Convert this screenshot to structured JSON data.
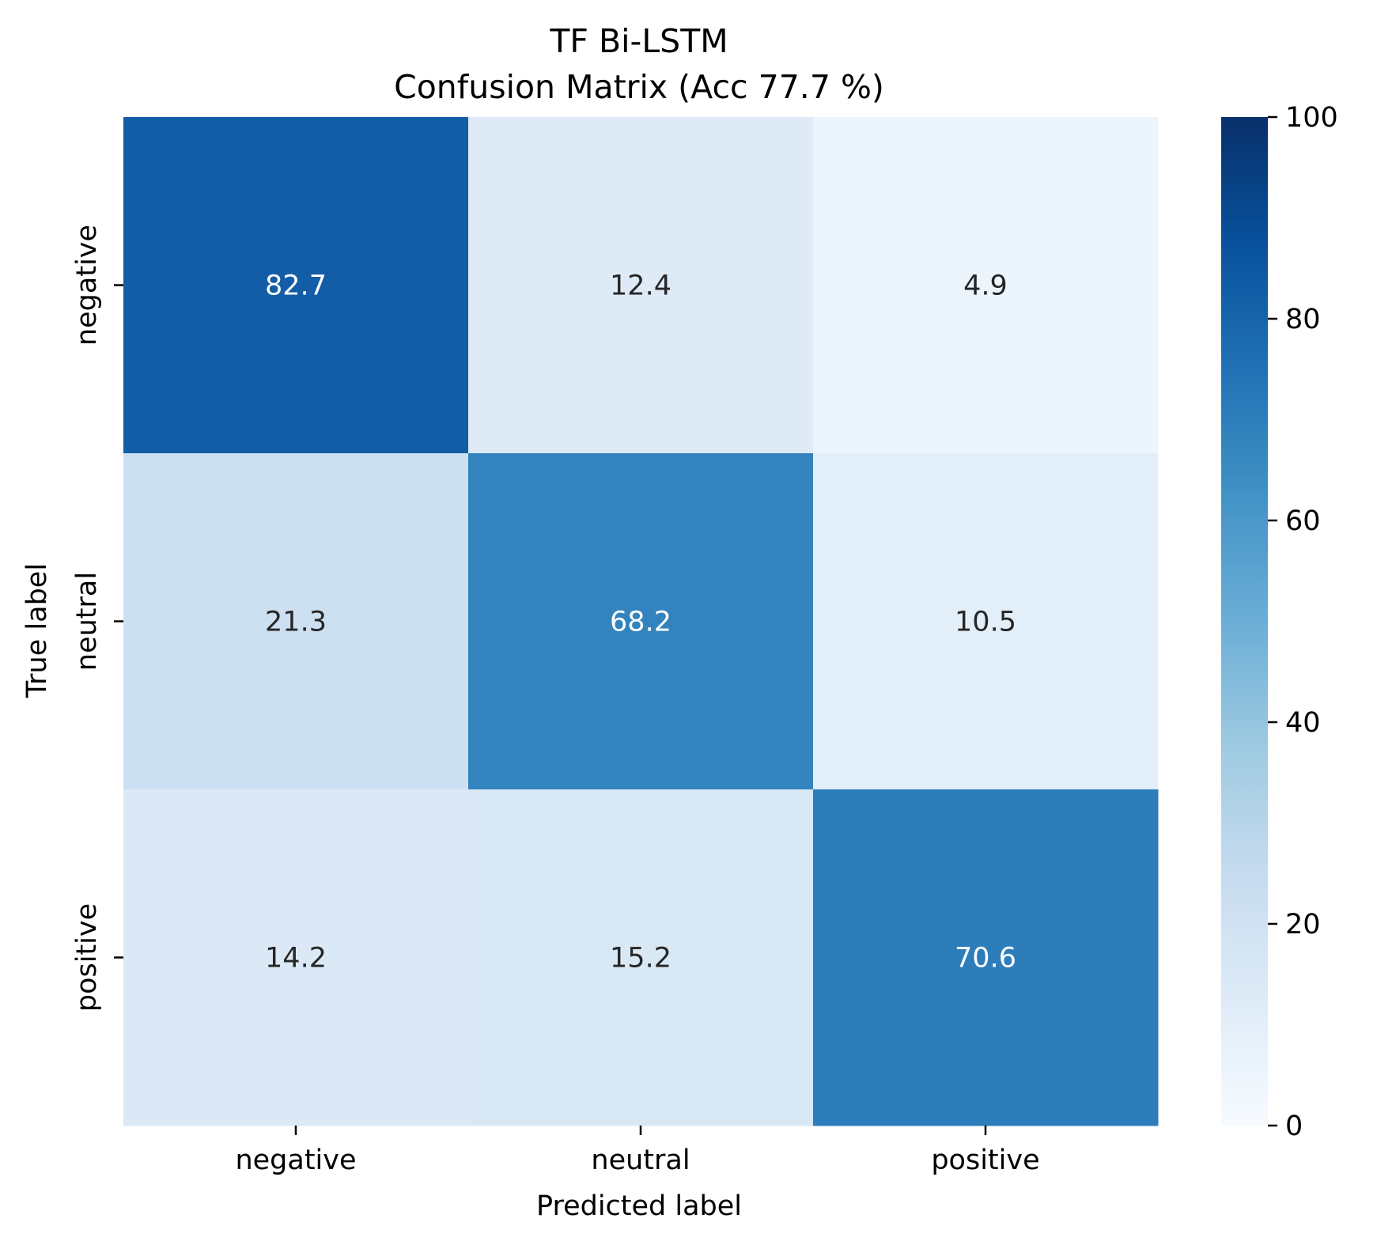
{
  "chart_data": {
    "type": "heatmap",
    "title": "TF Bi-LSTM",
    "subtitle": "Confusion Matrix (Acc 77.7 %)",
    "xlabel": "Predicted label",
    "ylabel": "True label",
    "x_categories": [
      "negative",
      "neutral",
      "positive"
    ],
    "y_categories": [
      "negative",
      "neutral",
      "positive"
    ],
    "values": [
      [
        82.7,
        12.4,
        4.9
      ],
      [
        21.3,
        68.2,
        10.5
      ],
      [
        14.2,
        15.2,
        70.6
      ]
    ],
    "value_labels": [
      [
        "82.7",
        "12.4",
        "4.9"
      ],
      [
        "21.3",
        "68.2",
        "10.5"
      ],
      [
        "14.2",
        "15.2",
        "70.6"
      ]
    ],
    "colorbar": {
      "range": [
        0,
        100
      ],
      "ticks": [
        0,
        20,
        40,
        60,
        80,
        100
      ],
      "tick_labels": [
        "0",
        "20",
        "40",
        "60",
        "80",
        "100"
      ],
      "colormap": "Blues"
    },
    "colors": {
      "low": "#f7fbff",
      "high": "#08306b",
      "text_dark": "#262626",
      "text_light": "#ffffff"
    }
  }
}
